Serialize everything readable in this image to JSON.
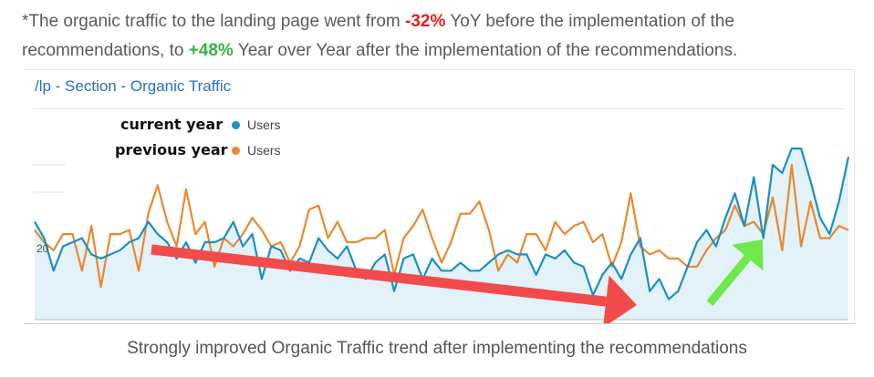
{
  "intro": {
    "part1": "*The organic traffic to the landing page went from ",
    "neg_value": "-32%",
    "part2": " YoY before the implementation of the recommendations, to ",
    "pos_value": "+48%",
    "part3": " Year over Year after the implementation of the recommendations."
  },
  "caption": "Strongly improved Organic Traffic trend after implementing the recommendations",
  "colors": {
    "current": "#1b8fc4",
    "previous": "#e88a2e",
    "area_fill": "#e3f1f8",
    "red_arrow": "#f24b4b",
    "green_arrow": "#6ee84a",
    "negative": "#e02020",
    "positive": "#3cb043"
  },
  "chart_data": {
    "type": "line",
    "title": "/lp - Section - Organic Traffic",
    "y_tick_label": "20",
    "y_tick_value": 20,
    "ylim": [
      0,
      38
    ],
    "legend": [
      {
        "period": "current year",
        "metric": "Users"
      },
      {
        "period": "previous year",
        "metric": "Users"
      }
    ],
    "series": [
      {
        "period": "current year",
        "name": "Users",
        "values": [
          24,
          20,
          12,
          18,
          19,
          20,
          16,
          15,
          16,
          17,
          19,
          20,
          24,
          21,
          19,
          15,
          19,
          14,
          19,
          19,
          20,
          24,
          18,
          21,
          10,
          18,
          17,
          12,
          15,
          14,
          20,
          17,
          15,
          18,
          12,
          10,
          14,
          16,
          7,
          15,
          16,
          10,
          15,
          12,
          12,
          14,
          12,
          12,
          14,
          16,
          17,
          16,
          16,
          11,
          16,
          15,
          17,
          14,
          13,
          6,
          11,
          14,
          10,
          16,
          20,
          7,
          10,
          5,
          7,
          13,
          19,
          22,
          18,
          25,
          31,
          23,
          35,
          20,
          38,
          36,
          42,
          42,
          34,
          25,
          21,
          29,
          40
        ]
      },
      {
        "period": "previous year",
        "name": "Users",
        "values": [
          22,
          19,
          17,
          21,
          21,
          12,
          23,
          8,
          21,
          21,
          22,
          12,
          26,
          33,
          24,
          18,
          32,
          21,
          24,
          13,
          20,
          18,
          21,
          25,
          22,
          18,
          19,
          14,
          18,
          27,
          28,
          20,
          24,
          19,
          19,
          20,
          20,
          22,
          11,
          20,
          23,
          27,
          20,
          14,
          19,
          26,
          26,
          29,
          22,
          12,
          16,
          14,
          21,
          21,
          17,
          24,
          21,
          23,
          24,
          19,
          21,
          13,
          19,
          31,
          18,
          16,
          17,
          15,
          15,
          13,
          13,
          17,
          20,
          22,
          28,
          23,
          24,
          21,
          30,
          17,
          38,
          18,
          29,
          20,
          20,
          23,
          22
        ]
      }
    ],
    "annotations": [
      {
        "type": "arrow",
        "trend": "down",
        "color": "red"
      },
      {
        "type": "arrow",
        "trend": "up",
        "color": "green"
      }
    ]
  }
}
